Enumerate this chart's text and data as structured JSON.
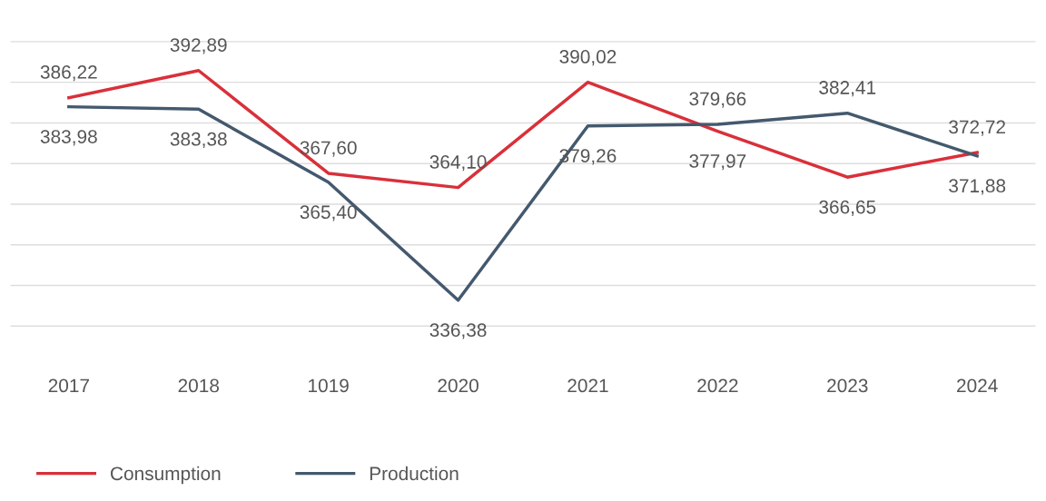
{
  "chart_data": {
    "type": "line",
    "categories": [
      "2017",
      "2018",
      "1019",
      "2020",
      "2021",
      "2022",
      "2023",
      "2024"
    ],
    "series": [
      {
        "name": "Consumption",
        "color": "#d9303a",
        "values": [
          386.22,
          392.89,
          367.6,
          364.1,
          390.02,
          377.97,
          366.65,
          372.72
        ],
        "value_labels": [
          "386,22",
          "392,89",
          "367,60",
          "364,10",
          "390,02",
          "377,97",
          "366,65",
          "372,72"
        ]
      },
      {
        "name": "Production",
        "color": "#44596e",
        "values": [
          383.98,
          383.38,
          365.4,
          336.38,
          379.26,
          379.66,
          382.41,
          371.88
        ],
        "value_labels": [
          "383,98",
          "383,38",
          "365,40",
          "336,38",
          "379,26",
          "379,66",
          "382,41",
          "371,88"
        ]
      }
    ],
    "grid": "y",
    "legend": "bottom left",
    "marker": "none",
    "line_style": "solid",
    "tick_labels": "x"
  }
}
